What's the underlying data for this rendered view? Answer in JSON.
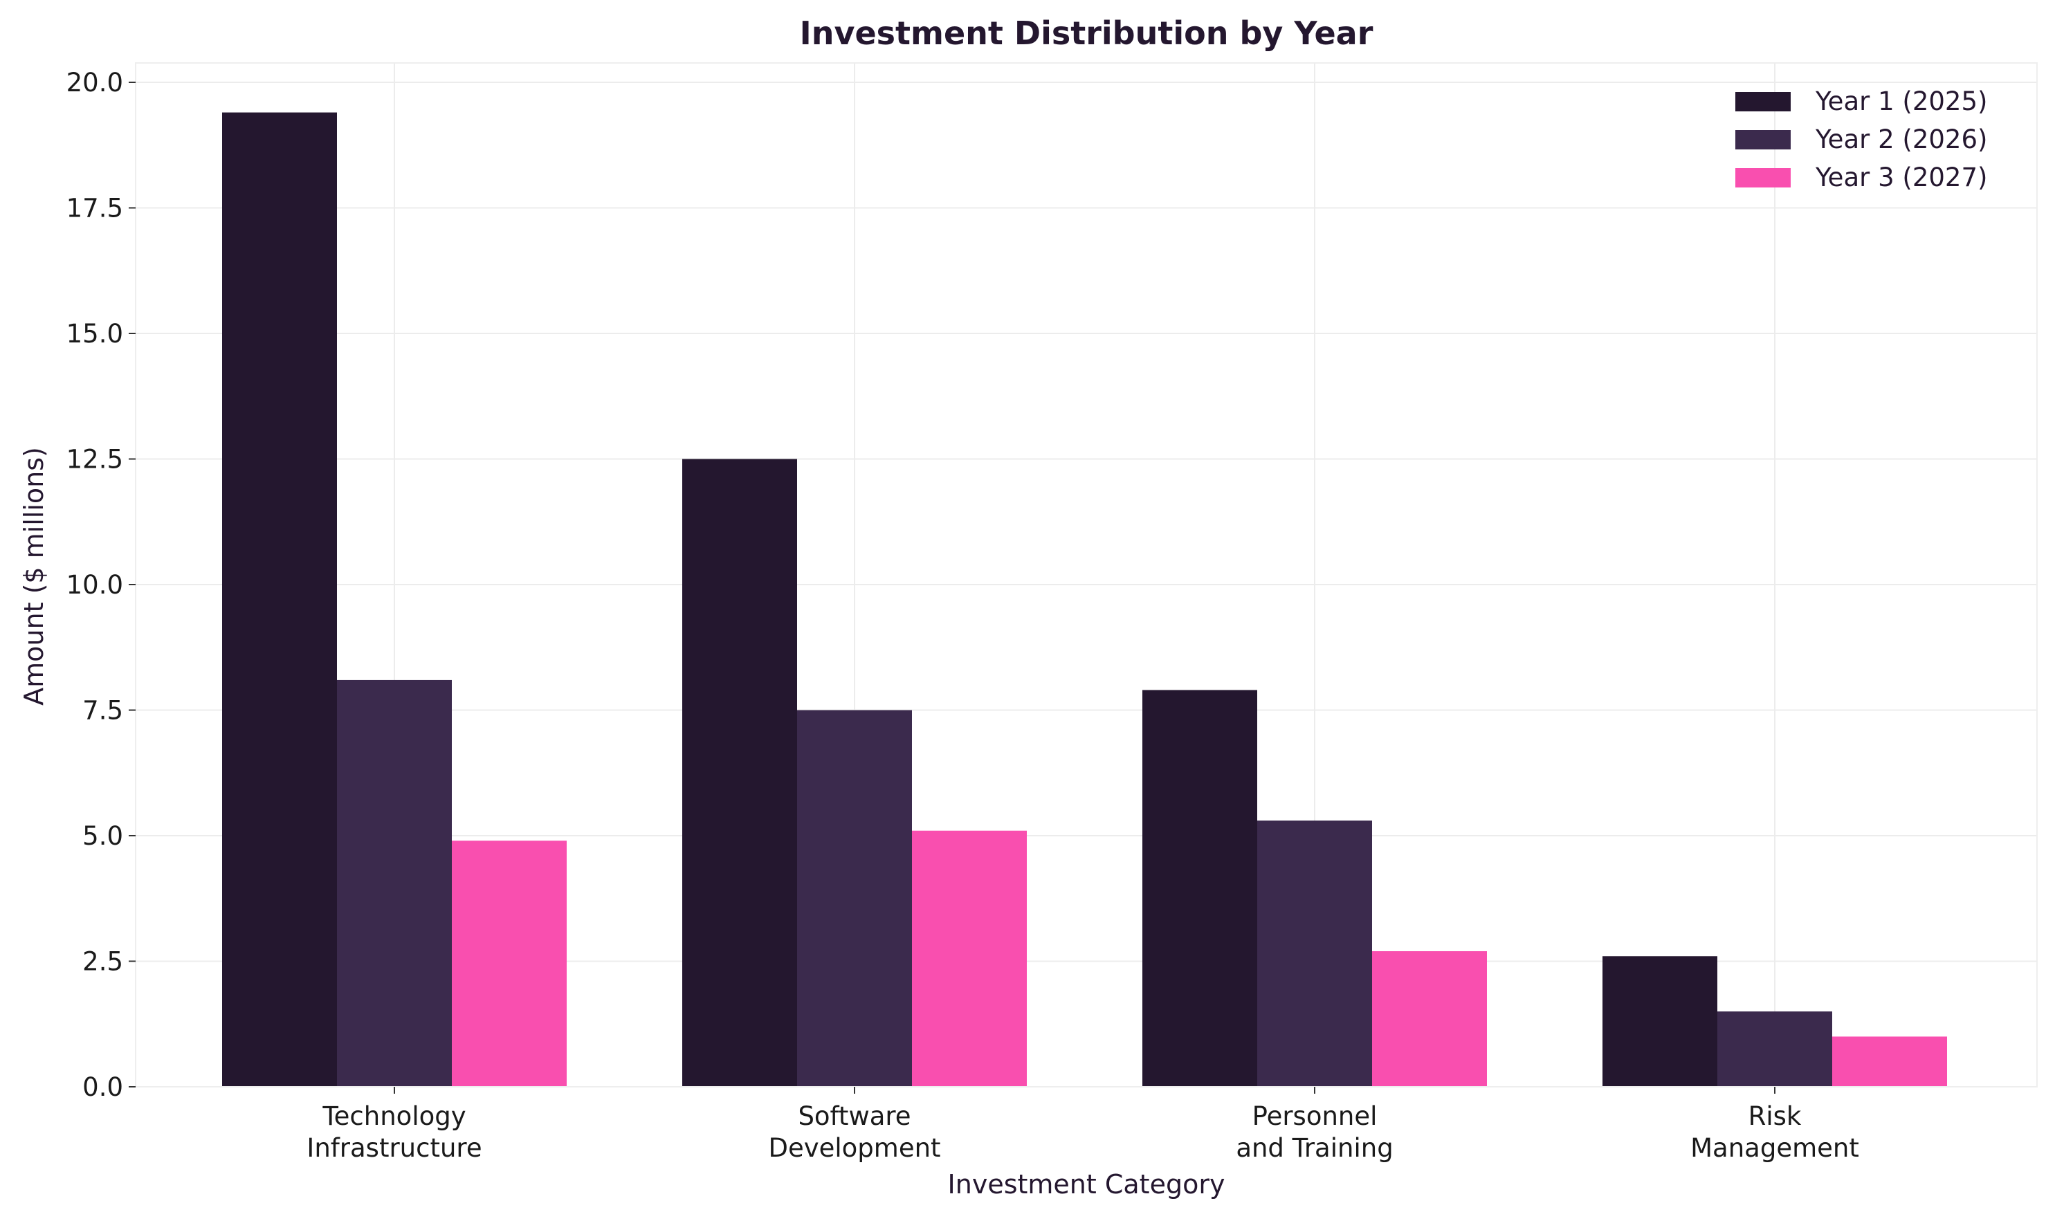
{
  "chart_data": {
    "type": "bar",
    "title": "Investment Distribution by Year",
    "xlabel": "Investment Category",
    "ylabel": "Amount ($ millions)",
    "categories": [
      [
        "Technology",
        "Infrastructure"
      ],
      [
        "Software",
        "Development"
      ],
      [
        "Personnel",
        "and Training"
      ],
      [
        "Risk",
        "Management"
      ]
    ],
    "series": [
      {
        "name": "Year 1 (2025)",
        "color": "#24172f",
        "values": [
          19.4,
          12.5,
          7.9,
          2.6
        ]
      },
      {
        "name": "Year 2 (2026)",
        "color": "#3b2a4d",
        "values": [
          8.1,
          7.5,
          5.3,
          1.5
        ]
      },
      {
        "name": "Year 3 (2027)",
        "color": "#f94faf",
        "values": [
          4.9,
          5.1,
          2.7,
          1.0
        ]
      }
    ],
    "ylim": [
      0,
      20.4
    ],
    "yticks": [
      0.0,
      2.5,
      5.0,
      7.5,
      10.0,
      12.5,
      15.0,
      17.5,
      20.0
    ],
    "ytick_labels": [
      "0.0",
      "2.5",
      "5.0",
      "7.5",
      "10.0",
      "12.5",
      "15.0",
      "17.5",
      "20.0"
    ],
    "grid": true,
    "legend_position": "top-right"
  }
}
